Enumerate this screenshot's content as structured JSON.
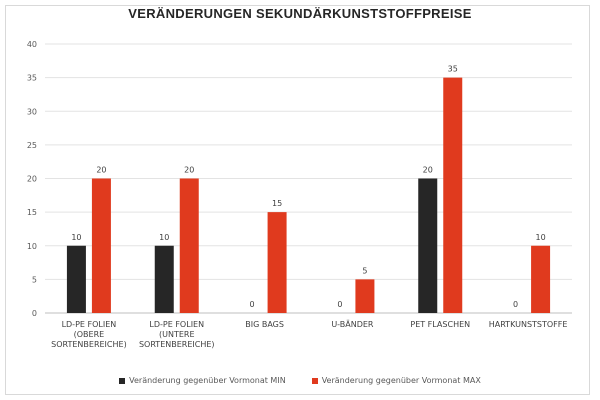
{
  "chart_data": {
    "type": "bar",
    "title": "VERÄNDERUNGEN SEKUNDÄRKUNSTSTOFFPREISE",
    "categories": [
      [
        "LD-PE FOLIEN",
        "(OBERE",
        "SORTENBEREICHE)"
      ],
      [
        "LD-PE FOLIEN",
        "(UNTERE",
        "SORTENBEREICHE)"
      ],
      [
        "BIG BAGS"
      ],
      [
        "U-BÄNDER"
      ],
      [
        "PET FLASCHEN"
      ],
      [
        "HARTKUNSTSTOFFE"
      ]
    ],
    "series": [
      {
        "name": "Veränderung gegenüber Vormonat MIN",
        "color": "#262626",
        "values": [
          10,
          10,
          0,
          0,
          20,
          0
        ]
      },
      {
        "name": "Veränderung gegenüber Vormonat MAX",
        "color": "#e03a1e",
        "values": [
          20,
          20,
          15,
          5,
          35,
          10
        ]
      }
    ],
    "ylim": [
      0,
      40
    ],
    "yticks": [
      0,
      5,
      10,
      15,
      20,
      25,
      30,
      35,
      40
    ],
    "grid": true,
    "legend": "bottom"
  }
}
